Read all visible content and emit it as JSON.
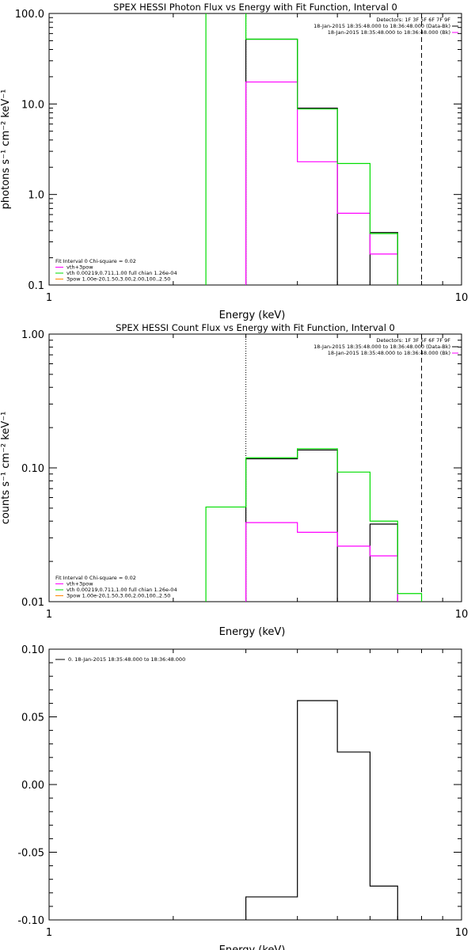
{
  "chart_data": [
    {
      "type": "line",
      "title": "SPEX HESSI Photon Flux vs Energy with Fit Function, Interval 0",
      "xlabel": "Energy (keV)",
      "ylabel": "photons s⁻¹ cm⁻² keV⁻¹",
      "xscale": "log",
      "yscale": "log",
      "xlim": [
        1,
        10
      ],
      "ylim": [
        0.1,
        100
      ],
      "x_ticks": [
        "1",
        "10"
      ],
      "y_ticks": [
        "0.1",
        "1.0",
        "10.0",
        "100.0"
      ],
      "x_tick_values": [
        1,
        10
      ],
      "y_tick_values": [
        0.1,
        1,
        10,
        100
      ],
      "legend_top_right": [
        "Detectors: 1F 3F 5F 6F 7F 9F",
        "18-Jan-2015 18:35:48.000 to 18:36:48.000 (Data-Bk)",
        "18-Jan-2015 18:35:48.000 to 18:36:48.000 (Bk)"
      ],
      "legend_bottom_left": [
        "Fit Interval 0   Chi-square = 0.02",
        "vth+3pow",
        "vth 0.00219,0.711,1.00  full chian 1.26e-04",
        "3pow 1.00e-20,1.50,3.00,2.00,100.,2.50"
      ],
      "vertical_markers": [
        {
          "x": 3.0,
          "style": "dotted"
        },
        {
          "x": 8.0,
          "style": "dashed"
        }
      ],
      "edges": [
        2.4,
        3.0,
        4.0,
        5.0,
        6.0,
        7.0,
        8.0
      ],
      "series": [
        {
          "name": "Data-Bk",
          "color": "#000000",
          "values": [
            null,
            52,
            9.0,
            null,
            0.38,
            null
          ]
        },
        {
          "name": "Bk",
          "color": "#ff00ff",
          "values": [
            null,
            17.5,
            2.3,
            0.62,
            0.22,
            null
          ]
        },
        {
          "name": "vth+3pow",
          "color": "#00dd00",
          "values": [
            1000,
            52,
            8.8,
            2.2,
            0.37,
            null
          ]
        }
      ]
    },
    {
      "type": "line",
      "title": "SPEX HESSI Count Flux vs Energy with Fit Function, Interval 0",
      "xlabel": "Energy (keV)",
      "ylabel": "counts s⁻¹ cm⁻² keV⁻¹",
      "xscale": "log",
      "yscale": "log",
      "xlim": [
        1,
        10
      ],
      "ylim": [
        0.01,
        1.0
      ],
      "x_ticks": [
        "1",
        "10"
      ],
      "y_ticks": [
        "0.01",
        "0.10",
        "1.00"
      ],
      "x_tick_values": [
        1,
        10
      ],
      "y_tick_values": [
        0.01,
        0.1,
        1.0
      ],
      "legend_top_right": [
        "Detectors: 1F 3F 5F 6F 7F 9F",
        "18-Jan-2015 18:35:48.000 to 18:36:48.000 (Data-Bk)",
        "18-Jan-2015 18:35:48.000 to 18:36:48.000 (Bk)"
      ],
      "legend_bottom_left": [
        "Fit Interval 0   Chi-square = 0.02",
        "vth+3pow",
        "vth 0.00219,0.711,1.00  full chian 1.26e-04",
        "3pow 1.00e-20,1.50,3.00,2.00,100.,2.50"
      ],
      "vertical_markers": [
        {
          "x": 3.0,
          "style": "dotted"
        },
        {
          "x": 8.0,
          "style": "dashed"
        }
      ],
      "edges": [
        2.4,
        3.0,
        4.0,
        5.0,
        6.0,
        7.0,
        8.0,
        9.0
      ],
      "series": [
        {
          "name": "Data-Bk",
          "color": "#000000",
          "values": [
            null,
            0.117,
            0.136,
            null,
            0.038,
            null,
            null
          ]
        },
        {
          "name": "Bk",
          "color": "#ff00ff",
          "values": [
            null,
            0.039,
            0.033,
            0.026,
            0.022,
            null,
            null
          ]
        },
        {
          "name": "vth+3pow",
          "color": "#00dd00",
          "values": [
            0.051,
            0.119,
            0.139,
            0.093,
            0.04,
            0.0115,
            null
          ]
        }
      ]
    },
    {
      "type": "line",
      "title": "",
      "xlabel": "Energy (keV)",
      "ylabel": "",
      "xscale": "log",
      "yscale": "linear",
      "xlim": [
        1,
        10
      ],
      "ylim": [
        -0.1,
        0.1
      ],
      "x_ticks": [
        "1",
        "10"
      ],
      "y_ticks": [
        "-0.10",
        "-0.05",
        "0.00",
        "0.05",
        "0.10"
      ],
      "x_tick_values": [
        1,
        10
      ],
      "y_tick_values": [
        -0.1,
        -0.05,
        0.0,
        0.05,
        0.1
      ],
      "legend_top_left": [
        "0. 18-Jan-2015 18:35:48.000 to 18:36:48.000"
      ],
      "edges": [
        3.0,
        4.0,
        5.0,
        6.0,
        7.0,
        8.0
      ],
      "series": [
        {
          "name": "0. 18-Jan-2015 18:35:48.000 to 18:36:48.000",
          "color": "#000000",
          "values": [
            -0.083,
            0.062,
            0.024,
            -0.075,
            null
          ]
        }
      ]
    }
  ]
}
